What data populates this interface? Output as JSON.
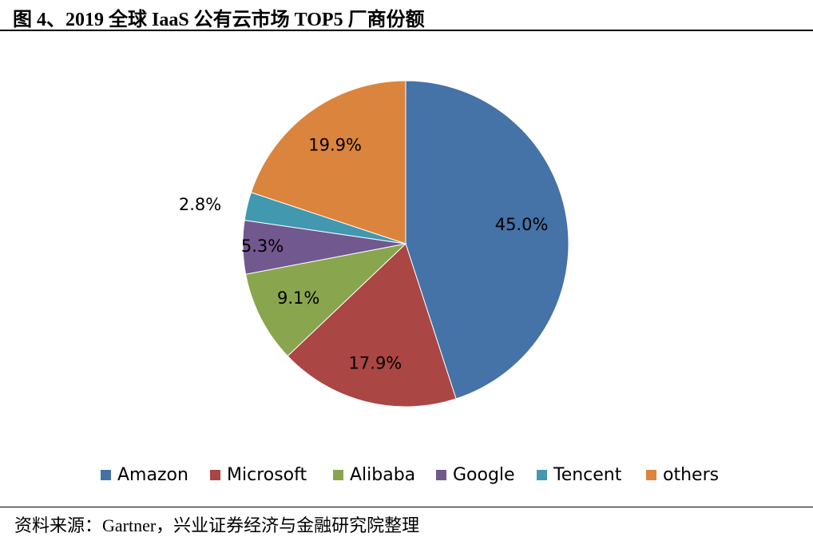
{
  "title": "图 4、2019 全球 IaaS 公有云市场 TOP5 厂商份额",
  "source": "资料来源：Gartner，兴业证券经济与金融研究院整理",
  "chart_data": {
    "type": "pie",
    "title": "",
    "categories": [
      "Amazon",
      "Microsoft",
      "Alibaba",
      "Google",
      "Tencent",
      "others"
    ],
    "values": [
      45.0,
      17.9,
      9.1,
      5.3,
      2.8,
      19.9
    ],
    "labels": [
      "45.0%",
      "17.9%",
      "9.1%",
      "5.3%",
      "2.8%",
      "19.9%"
    ],
    "colors": [
      "#4572a7",
      "#aa4643",
      "#89a54e",
      "#71588f",
      "#4198af",
      "#db843d"
    ],
    "legend": "bottom",
    "start": "top",
    "direction": "clockwise"
  }
}
